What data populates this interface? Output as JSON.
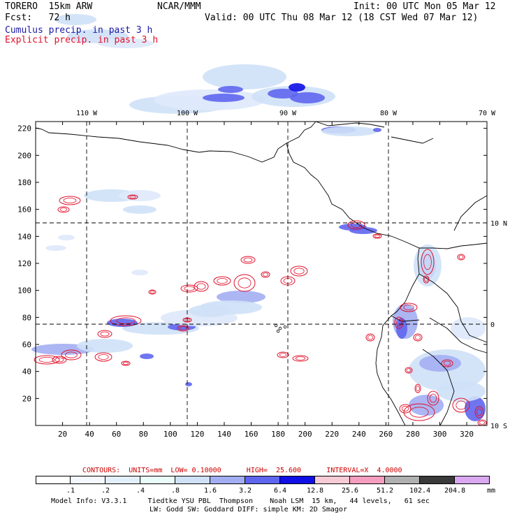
{
  "header": {
    "model": "TORERO  15km ARW",
    "org": "NCAR/MMM",
    "init": "Init: 00 UTC Mon 05 Mar 12",
    "fcst": "Fcst:   72 h",
    "valid": "Valid: 00 UTC Thu 08 Mar 12 (18 CST Wed 07 Mar 12)",
    "line_cumulus": "Cumulus precip. in past 3 h",
    "line_explicit": "Explicit precip. in past 3 h"
  },
  "colors": {
    "cumulus": "#1a1aa6",
    "explicit": "#e0102a",
    "contour_info": "#cc0000"
  },
  "axes": {
    "top_lon": [
      "110 W",
      "100 W",
      "90 W",
      "80 W",
      "70 W"
    ],
    "right_lat": [
      "10 N",
      "0",
      "10 S"
    ],
    "left_y": [
      "220",
      "200",
      "180",
      "160",
      "140",
      "120",
      "100",
      "80",
      "60",
      "40",
      "20"
    ],
    "bottom_x": [
      "20",
      "40",
      "60",
      "80",
      "100",
      "120",
      "140",
      "160",
      "180",
      "200",
      "220",
      "240",
      "260",
      "280",
      "300",
      "320"
    ],
    "x_range": [
      0,
      335
    ],
    "y_range": [
      0,
      225
    ],
    "gridlines": "dashed"
  },
  "contour_info": {
    "text": "CONTOURS:  UNITS=mm  LOW= 0.10000      HIGH=  25.600      INTERVAL=X  4.0000"
  },
  "legend": {
    "unit": "mm",
    "labels": [
      ".1",
      ".2",
      ".4",
      ".8",
      "1.6",
      "3.2",
      "6.4",
      "12.8",
      "25.6",
      "51.2",
      "102.4",
      "204.8"
    ],
    "colors": [
      "#ffffff",
      "#f4f8ff",
      "#e4effc",
      "#eafcf8",
      "#cfe1f7",
      "#a3aef2",
      "#5f66ee",
      "#0f0fe6",
      "#f6cbd6",
      "#f69ebf",
      "#b0b0b0",
      "#3a3a3a",
      "#d9a8f0"
    ]
  },
  "footer": {
    "line1": "Model Info: V3.3.1     Tiedtke YSU PBL  Thompson    Noah LSM  15 km,   44 levels,   61 sec",
    "line2": "LW: Godd SW: Goddard DIFF: simple KM: 2D Smagor"
  }
}
